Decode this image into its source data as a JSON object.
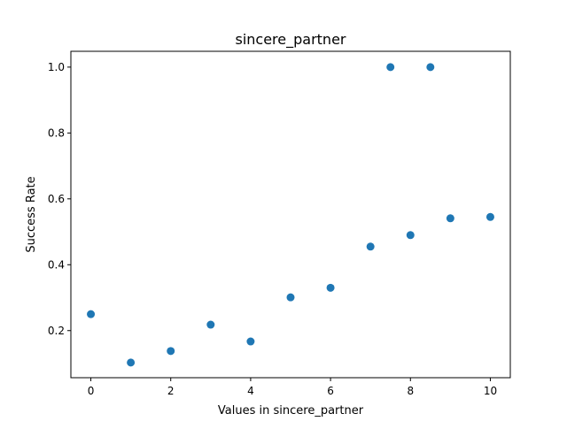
{
  "chart_data": {
    "type": "scatter",
    "title": "sincere_partner",
    "xlabel": "Values in sincere_partner",
    "ylabel": "Success Rate",
    "xlim": [
      -0.5,
      10.5
    ],
    "ylim": [
      0.057,
      1.048
    ],
    "xticks": [
      0,
      2,
      4,
      6,
      8,
      10
    ],
    "yticks": [
      0.2,
      0.4,
      0.6,
      0.8,
      1.0
    ],
    "xtick_labels": [
      "0",
      "2",
      "4",
      "6",
      "8",
      "10"
    ],
    "ytick_labels": [
      "0.2",
      "0.4",
      "0.6",
      "0.8",
      "1.0"
    ],
    "marker_color": "#1f77b4",
    "grid": false,
    "legend": null,
    "points": [
      {
        "x": 0,
        "y": 0.25
      },
      {
        "x": 1,
        "y": 0.103
      },
      {
        "x": 2,
        "y": 0.138
      },
      {
        "x": 3,
        "y": 0.218
      },
      {
        "x": 4,
        "y": 0.167
      },
      {
        "x": 5,
        "y": 0.301
      },
      {
        "x": 6,
        "y": 0.33
      },
      {
        "x": 7,
        "y": 0.455
      },
      {
        "x": 7.5,
        "y": 1.0
      },
      {
        "x": 8,
        "y": 0.49
      },
      {
        "x": 8.5,
        "y": 1.0
      },
      {
        "x": 9,
        "y": 0.541
      },
      {
        "x": 10,
        "y": 0.545
      }
    ]
  }
}
